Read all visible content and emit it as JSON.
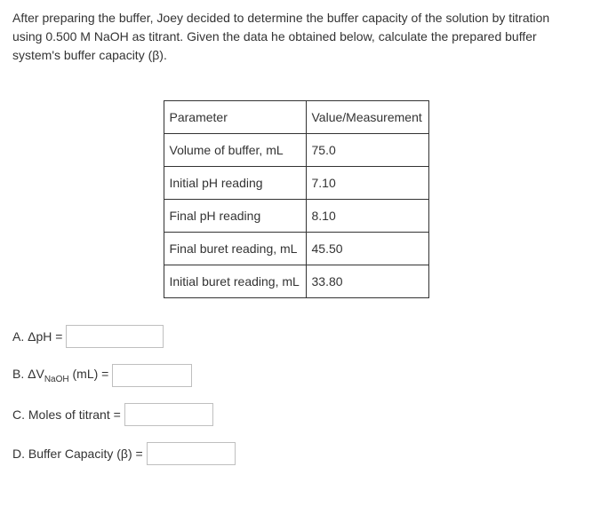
{
  "intro": "After preparing the buffer, Joey decided to determine the buffer capacity of the solution by titration using 0.500 M NaOH as titrant. Given the data he obtained below, calculate the prepared buffer system's buffer capacity (β).",
  "table": {
    "header": {
      "param": "Parameter",
      "value": "Value/Measurement"
    },
    "rows": [
      {
        "param": "Volume of buffer, mL",
        "value": "75.0"
      },
      {
        "param": "Initial pH reading",
        "value": "7.10"
      },
      {
        "param": "Final pH reading",
        "value": "8.10"
      },
      {
        "param": "Final buret reading, mL",
        "value": "45.50"
      },
      {
        "param": "Initial buret reading, mL",
        "value": "33.80"
      }
    ]
  },
  "answers": {
    "a": {
      "label": "A. ΔpH ="
    },
    "b": {
      "prefix": "B. ΔV",
      "sub": "NaOH",
      "suffix": " (mL) ="
    },
    "c": {
      "label": "C. Moles of titrant ="
    },
    "d": {
      "label": "D. Buffer Capacity (β) ="
    }
  }
}
